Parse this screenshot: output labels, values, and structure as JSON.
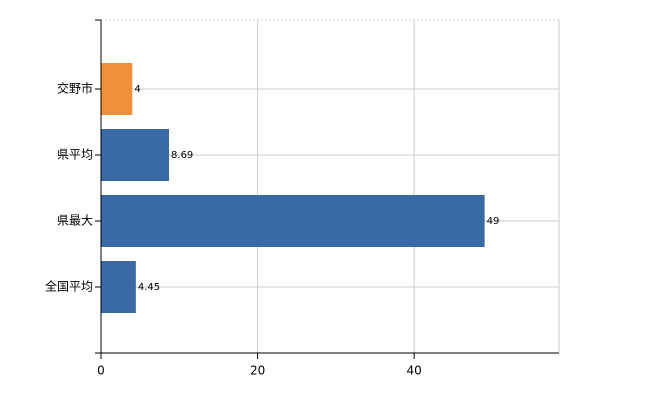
{
  "chart_data": {
    "type": "barh",
    "categories": [
      "交野市",
      "県平均",
      "県最大",
      "全国平均"
    ],
    "values": [
      4,
      8.69,
      49,
      4.45
    ],
    "colors": [
      "#f0913a",
      "#3a6aa5",
      "#3a6aa5",
      "#3a6aa5"
    ],
    "xlim": [
      0,
      58.5
    ],
    "xticks": [
      0,
      20,
      40
    ],
    "grid": true
  }
}
